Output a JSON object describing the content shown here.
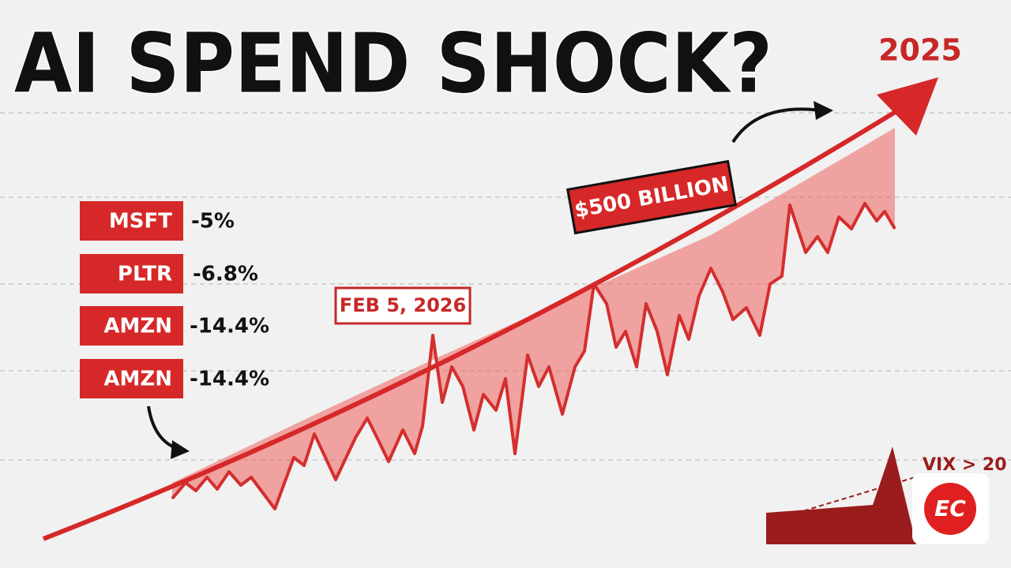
{
  "title": "AI SPEND SHOCK?",
  "year": "2025",
  "tickers": [
    {
      "symbol": "MSFT",
      "change": "-5%"
    },
    {
      "symbol": "PLTR",
      "change": "-6.8%"
    },
    {
      "symbol": "AMZN",
      "change": "-14.4%"
    },
    {
      "symbol": "AMZN",
      "change": "-14.4%"
    }
  ],
  "callouts": {
    "amount": "$500 BILLION",
    "date": "FEB 5, 2026"
  },
  "vix_label": "VIX > 20",
  "logo": "EC"
}
